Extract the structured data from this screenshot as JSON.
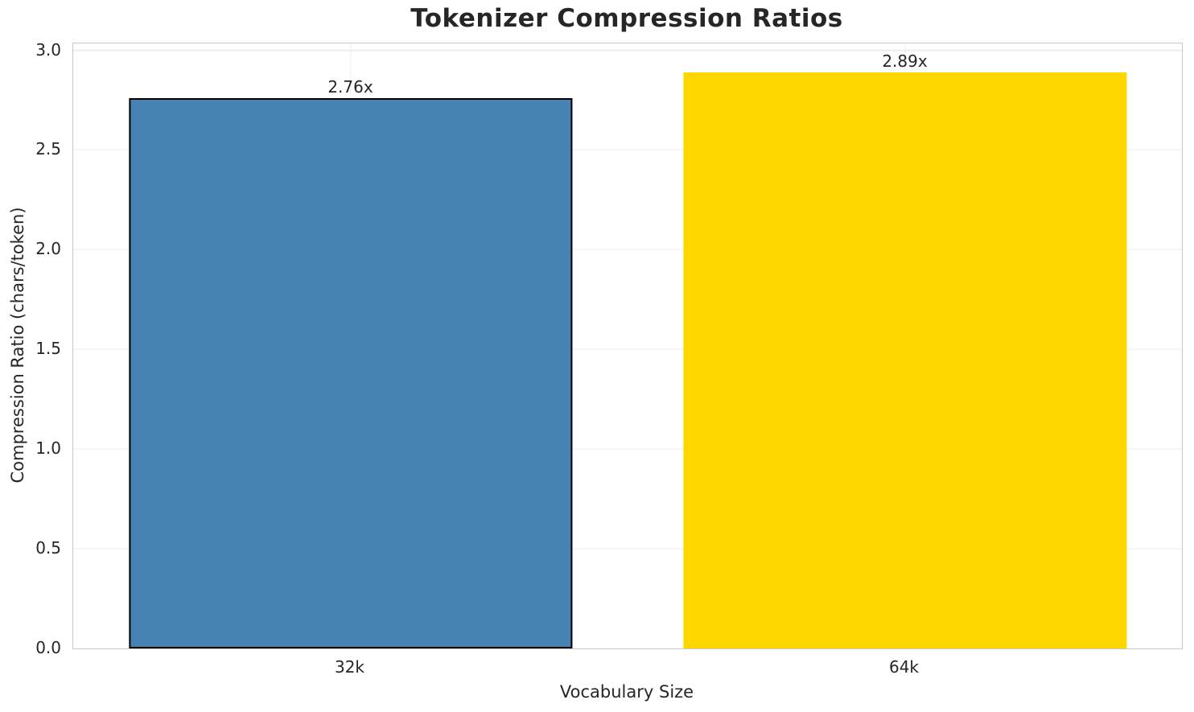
{
  "chart_data": {
    "type": "bar",
    "title": "Tokenizer Compression Ratios",
    "xlabel": "Vocabulary Size",
    "ylabel": "Compression Ratio (chars/token)",
    "categories": [
      "32k",
      "64k"
    ],
    "values": [
      2.76,
      2.89
    ],
    "bar_labels": [
      "2.76x",
      "2.89x"
    ],
    "bar_colors": [
      "#4682b4",
      "#ffd700"
    ],
    "bar_edge_colors": [
      "#000000",
      "none"
    ],
    "yticks": [
      "0.0",
      "0.5",
      "1.0",
      "1.5",
      "2.0",
      "2.5",
      "3.0"
    ],
    "ylim": [
      0,
      3.0345
    ],
    "grid": true,
    "legend": "none",
    "background_color": "#ffffff",
    "text_color": "#262626",
    "grid_color": "#ededed",
    "spine_color": "#c9c9c9"
  }
}
